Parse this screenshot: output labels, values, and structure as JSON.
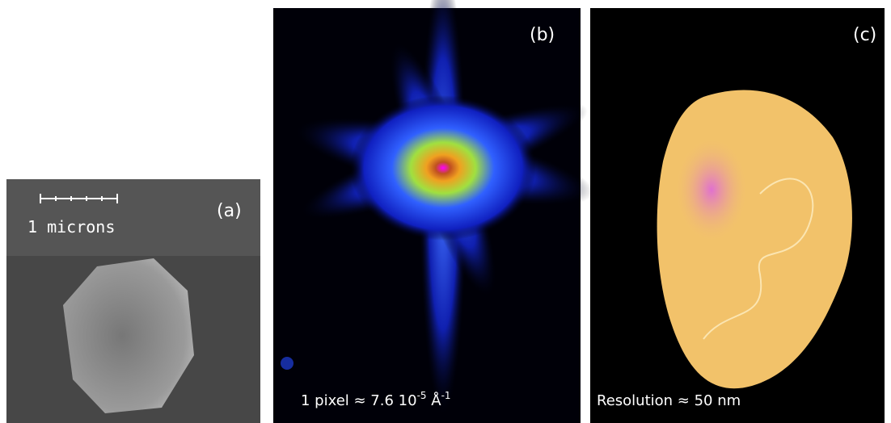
{
  "panels": [
    {
      "label": "(a)",
      "scale_bar": "1 microns"
    },
    {
      "label": "(b)",
      "caption": {
        "text": "1 pixel ≈ 7.6 10",
        "exponent": "-5",
        "unit": " Å",
        "unit_exponent": "-1"
      }
    },
    {
      "label": "(c)",
      "caption": "Resolution ≈ 50 nm"
    }
  ]
}
